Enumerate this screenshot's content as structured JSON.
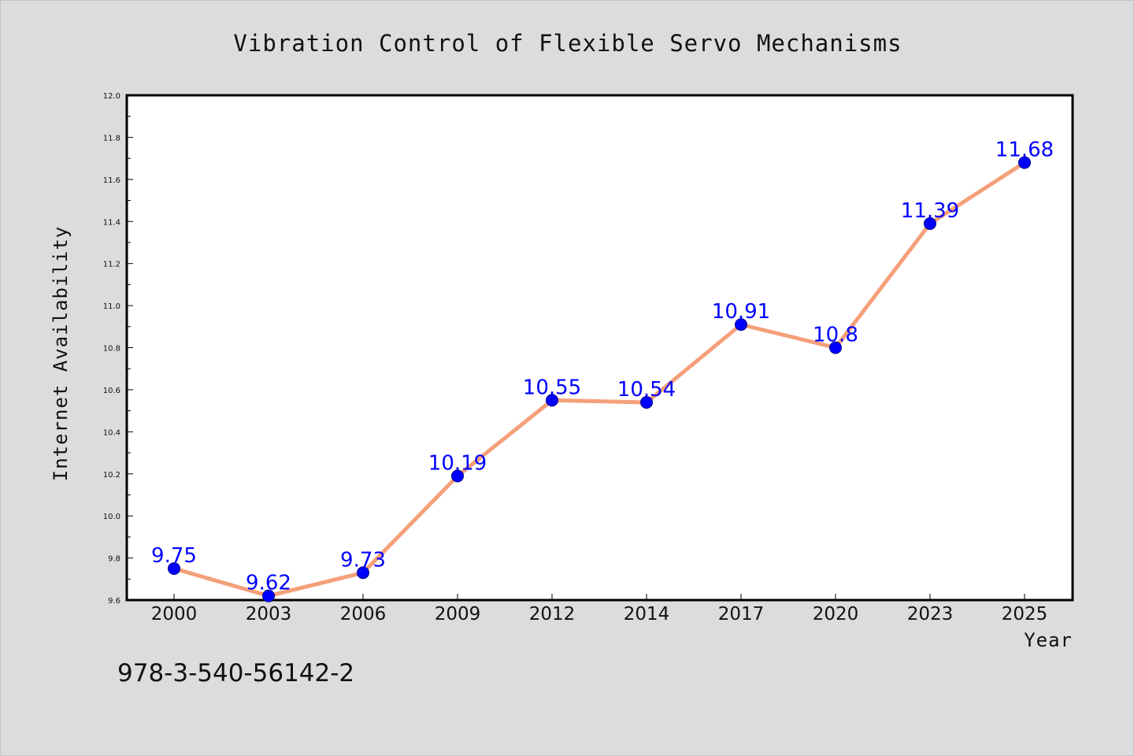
{
  "chart_data": {
    "type": "line",
    "title": "Vibration Control of Flexible Servo Mechanisms",
    "xlabel": "Year",
    "ylabel": "Internet Availability",
    "categories": [
      "2000",
      "2003",
      "2006",
      "2009",
      "2012",
      "2014",
      "2017",
      "2020",
      "2023",
      "2025"
    ],
    "series": [
      {
        "values": [
          9.75,
          9.62,
          9.73,
          10.19,
          10.55,
          10.54,
          10.91,
          10.8,
          11.39,
          11.68
        ],
        "data_labels": [
          "9.75",
          "9.62",
          "9.73",
          "10.19",
          "10.55",
          "10.54",
          "10.91",
          "10.8",
          "11.39",
          "11.68"
        ],
        "line_color": "#f4a07a",
        "marker_color": "#0000ff"
      }
    ],
    "ylim": [
      9.6,
      12.0
    ],
    "yticks": [
      "9.6",
      "9.8",
      "10.0",
      "10.2",
      "10.4",
      "10.6",
      "10.8",
      "11.0",
      "11.2",
      "11.4",
      "11.6",
      "11.8",
      "12.0"
    ],
    "grid": false,
    "legend": "none",
    "background_color": "#dcdcdc",
    "plot_background_color": "#ffffff"
  },
  "annotation": {
    "isbn": "978-3-540-56142-2"
  }
}
